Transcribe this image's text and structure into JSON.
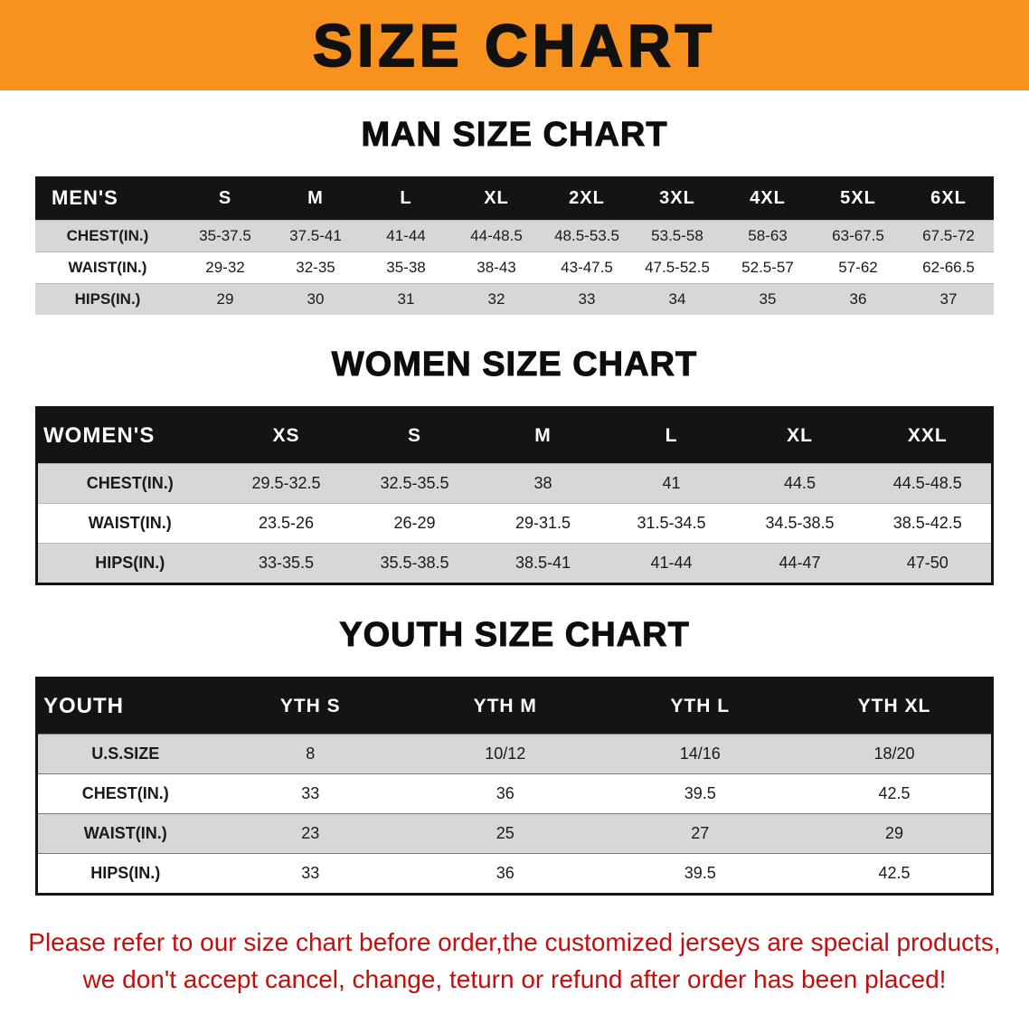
{
  "banner": {
    "title": "SIZE CHART"
  },
  "colors": {
    "banner_bg": "#f7921e",
    "banner_text": "#111111",
    "header_bg": "#141414",
    "header_text": "#ffffff",
    "row_alt": "#d7d7d7",
    "row_white": "#ffffff",
    "border_dark": "#141414",
    "note_red": "#c40d0d",
    "text": "#1a1a1a"
  },
  "sections": [
    {
      "heading": "MAN SIZE CHART",
      "table": {
        "header": [
          "MEN'S",
          "S",
          "M",
          "L",
          "XL",
          "2XL",
          "3XL",
          "4XL",
          "5XL",
          "6XL"
        ],
        "rows": [
          [
            "CHEST(IN.)",
            "35-37.5",
            "37.5-41",
            "41-44",
            "44-48.5",
            "48.5-53.5",
            "53.5-58",
            "58-63",
            "63-67.5",
            "67.5-72"
          ],
          [
            "WAIST(IN.)",
            "29-32",
            "32-35",
            "35-38",
            "38-43",
            "43-47.5",
            "47.5-52.5",
            "52.5-57",
            "57-62",
            "62-66.5"
          ],
          [
            "HIPS(IN.)",
            "29",
            "30",
            "31",
            "32",
            "33",
            "34",
            "35",
            "36",
            "37"
          ]
        ]
      }
    },
    {
      "heading": "WOMEN SIZE CHART",
      "table": {
        "header": [
          "WOMEN'S",
          "XS",
          "S",
          "M",
          "L",
          "XL",
          "XXL"
        ],
        "rows": [
          [
            "CHEST(IN.)",
            "29.5-32.5",
            "32.5-35.5",
            "38",
            "41",
            "44.5",
            "44.5-48.5"
          ],
          [
            "WAIST(IN.)",
            "23.5-26",
            "26-29",
            "29-31.5",
            "31.5-34.5",
            "34.5-38.5",
            "38.5-42.5"
          ],
          [
            "HIPS(IN.)",
            "33-35.5",
            "35.5-38.5",
            "38.5-41",
            "41-44",
            "44-47",
            "47-50"
          ]
        ]
      }
    },
    {
      "heading": "YOUTH SIZE CHART",
      "table": {
        "header": [
          "YOUTH",
          "YTH S",
          "YTH M",
          "YTH L",
          "YTH XL"
        ],
        "rows": [
          [
            "U.S.SIZE",
            "8",
            "10/12",
            "14/16",
            "18/20"
          ],
          [
            "CHEST(IN.)",
            "33",
            "36",
            "39.5",
            "42.5"
          ],
          [
            "WAIST(IN.)",
            "23",
            "25",
            "27",
            "29"
          ],
          [
            "HIPS(IN.)",
            "33",
            "36",
            "39.5",
            "42.5"
          ]
        ]
      }
    }
  ],
  "note": {
    "line1": "Please refer to our size chart before order,the customized jerseys are special products,",
    "line2": "we don't accept cancel, change, teturn or refund after order has been placed!"
  }
}
